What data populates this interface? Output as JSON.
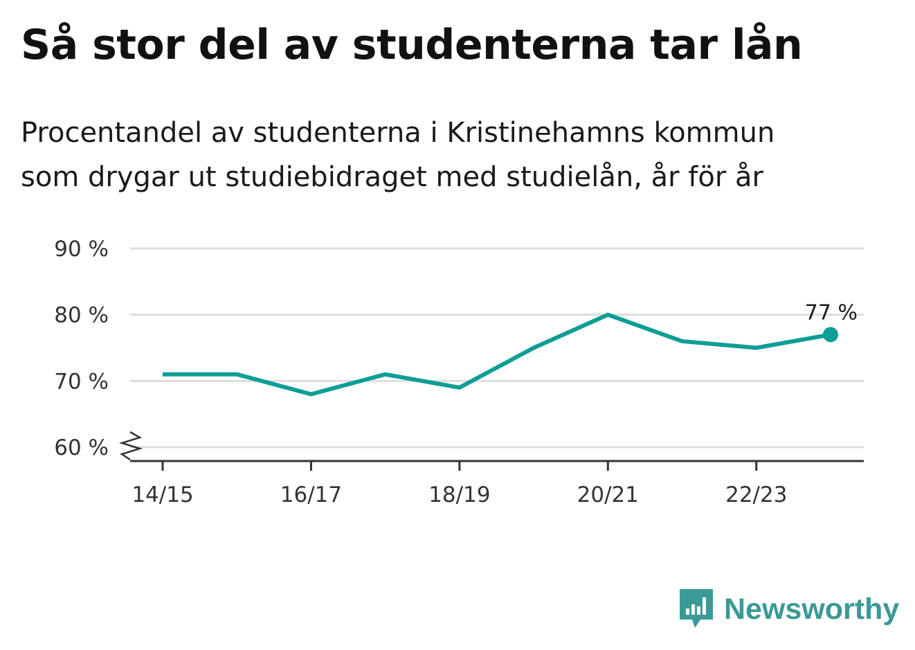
{
  "brand": {
    "name": "Newsworthy",
    "color": "#3a9a96"
  },
  "chart_data": {
    "type": "line",
    "title": "Så stor del av studenterna tar lån",
    "subtitle_lines": [
      "Procentandel av studenterna i Kristinehamns kommun",
      "som drygar ut studiebidraget med studielån, år för år"
    ],
    "xlabel": "",
    "ylabel": "",
    "x": [
      "14/15",
      "15/16",
      "16/17",
      "17/18",
      "18/19",
      "19/20",
      "20/21",
      "21/22",
      "22/23",
      "23/24"
    ],
    "x_tick_labels": [
      "14/15",
      "16/17",
      "18/19",
      "20/21",
      "22/23"
    ],
    "series": [
      {
        "values": [
          71,
          71,
          68,
          71,
          69,
          75,
          80,
          76,
          75,
          77
        ],
        "color": "#0d9e96"
      }
    ],
    "y_ticks": [
      60,
      70,
      80,
      90
    ],
    "y_tick_suffix": " %",
    "ylim": [
      60,
      90
    ],
    "y_axis_broken": true,
    "grid": true,
    "last_point_label": "77 %"
  }
}
